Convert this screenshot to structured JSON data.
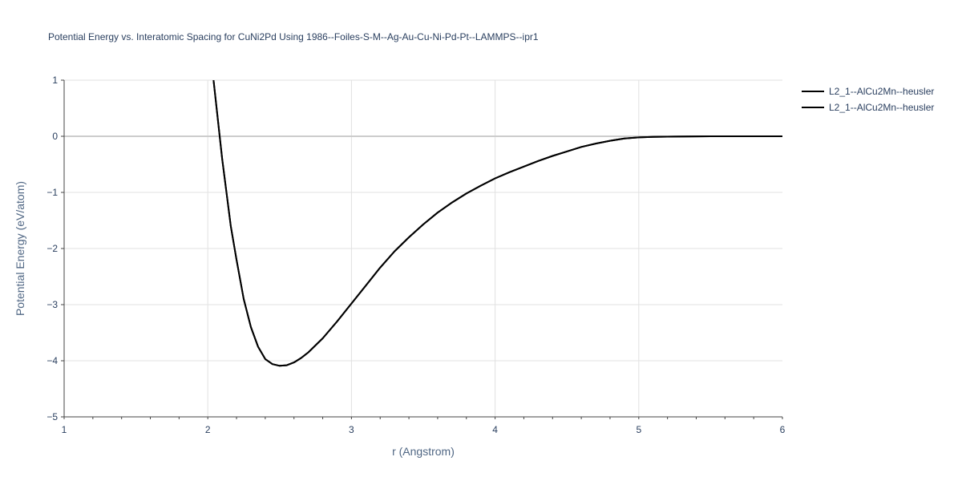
{
  "chart_data": {
    "type": "line",
    "title": "Potential Energy vs. Interatomic Spacing for CuNi2Pd Using 1986--Foiles-S-M--Ag-Au-Cu-Ni-Pd-Pt--LAMMPS--ipr1",
    "xlabel": "r (Angstrom)",
    "ylabel": "Potential Energy (eV/atom)",
    "xlim": [
      1,
      6
    ],
    "ylim": [
      -5,
      1
    ],
    "xticks": [
      "1",
      "2",
      "3",
      "4",
      "5",
      "6"
    ],
    "yticks": [
      "1",
      "0",
      "−1",
      "−2",
      "−3",
      "−4",
      "−5"
    ],
    "grid": true,
    "legend_position": "top-right",
    "series_color": "#000000",
    "series": [
      {
        "name": "L2_1--AlCu2Mn--heusler",
        "x": [
          2.04,
          2.07,
          2.1,
          2.13,
          2.16,
          2.2,
          2.25,
          2.3,
          2.35,
          2.4,
          2.45,
          2.5,
          2.55,
          2.6,
          2.65,
          2.7,
          2.8,
          2.9,
          3.0,
          3.1,
          3.2,
          3.3,
          3.4,
          3.5,
          3.6,
          3.7,
          3.8,
          3.9,
          4.0,
          4.1,
          4.2,
          4.3,
          4.4,
          4.5,
          4.6,
          4.7,
          4.8,
          4.9,
          5.0,
          5.1,
          5.25,
          5.5,
          5.75,
          6.0
        ],
        "y": [
          1.0,
          0.3,
          -0.4,
          -1.0,
          -1.6,
          -2.2,
          -2.9,
          -3.4,
          -3.75,
          -3.97,
          -4.06,
          -4.09,
          -4.08,
          -4.03,
          -3.95,
          -3.85,
          -3.6,
          -3.3,
          -2.98,
          -2.66,
          -2.34,
          -2.05,
          -1.8,
          -1.57,
          -1.36,
          -1.18,
          -1.02,
          -0.88,
          -0.75,
          -0.64,
          -0.54,
          -0.44,
          -0.35,
          -0.27,
          -0.19,
          -0.13,
          -0.08,
          -0.04,
          -0.02,
          -0.01,
          -0.005,
          0.0,
          0.0,
          0.0
        ]
      },
      {
        "name": "L2_1--AlCu2Mn--heusler",
        "x": [
          2.04,
          2.07,
          2.1,
          2.13,
          2.16,
          2.2,
          2.25,
          2.3,
          2.35,
          2.4,
          2.45,
          2.5,
          2.55,
          2.6,
          2.65,
          2.7,
          2.8,
          2.9,
          3.0,
          3.1,
          3.2,
          3.3,
          3.4,
          3.5,
          3.6,
          3.7,
          3.8,
          3.9,
          4.0,
          4.1,
          4.2,
          4.3,
          4.4,
          4.5,
          4.6,
          4.7,
          4.8,
          4.9,
          5.0,
          5.1,
          5.25,
          5.5,
          5.75,
          6.0
        ],
        "y": [
          1.0,
          0.3,
          -0.4,
          -1.0,
          -1.6,
          -2.2,
          -2.9,
          -3.4,
          -3.75,
          -3.97,
          -4.06,
          -4.09,
          -4.08,
          -4.03,
          -3.95,
          -3.85,
          -3.6,
          -3.3,
          -2.98,
          -2.66,
          -2.34,
          -2.05,
          -1.8,
          -1.57,
          -1.36,
          -1.18,
          -1.02,
          -0.88,
          -0.75,
          -0.64,
          -0.54,
          -0.44,
          -0.35,
          -0.27,
          -0.19,
          -0.13,
          -0.08,
          -0.04,
          -0.02,
          -0.01,
          -0.005,
          0.0,
          0.0,
          0.0
        ]
      }
    ]
  }
}
